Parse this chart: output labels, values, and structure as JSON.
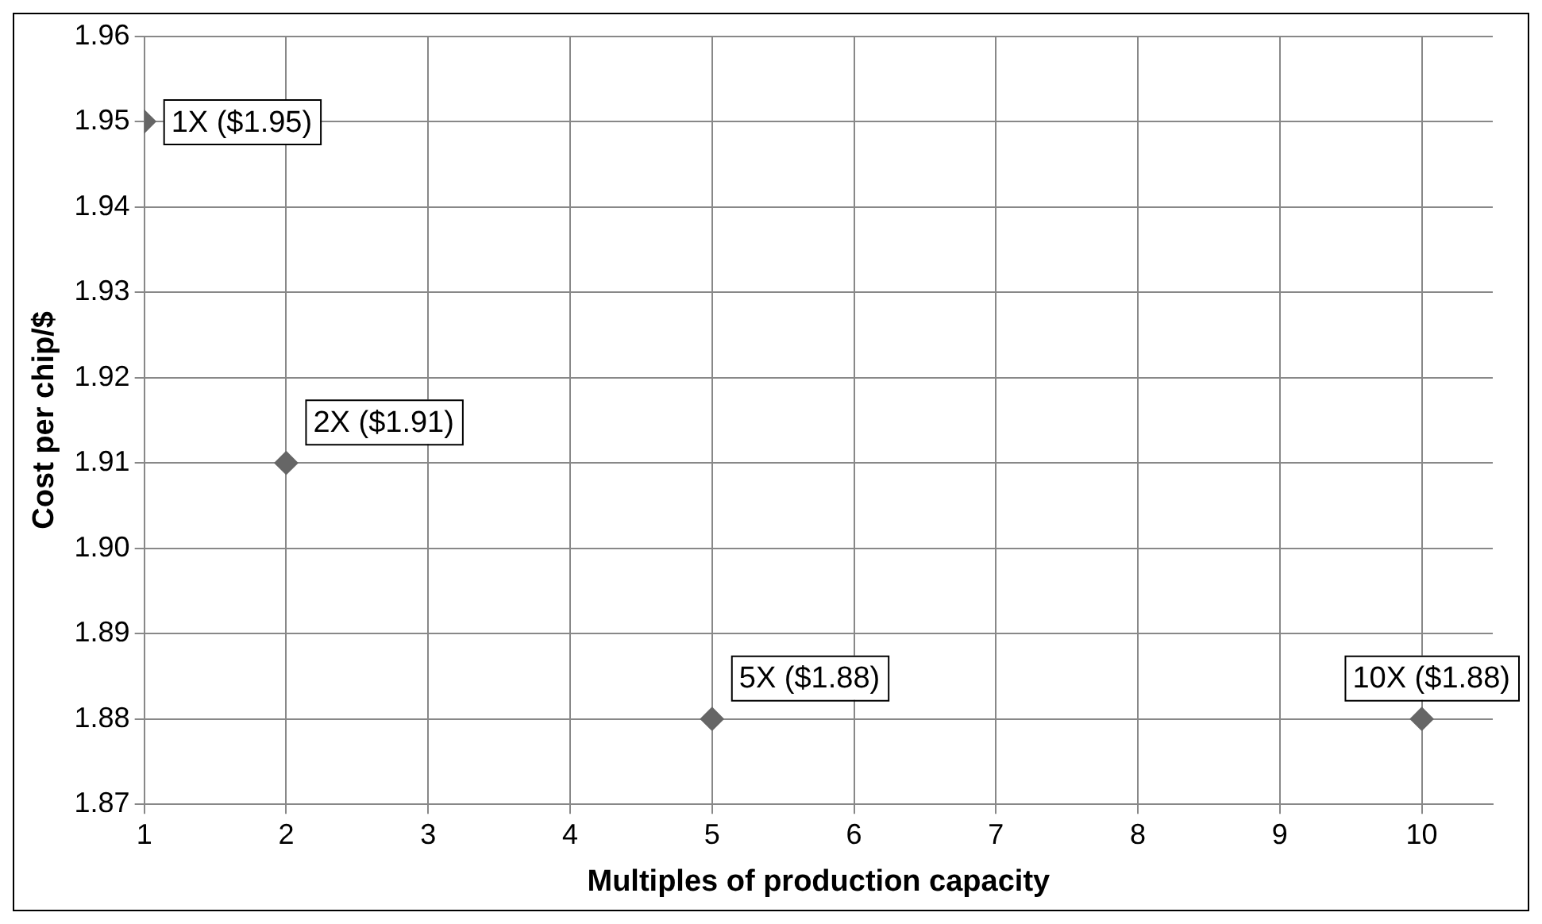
{
  "chart_data": {
    "type": "scatter",
    "xlabel": "Multiples of production capacity",
    "ylabel": "Cost per chip/$",
    "x": [
      1,
      2,
      5,
      10
    ],
    "series": [
      {
        "color": "#666666",
        "values": [
          1.95,
          1.91,
          1.88,
          1.88
        ],
        "value_labels": [
          "1X ($1.95)",
          "2X ($1.91)",
          "5X ($1.88)",
          "10X ($1.88)"
        ]
      }
    ],
    "xlim": [
      1,
      10.5
    ],
    "xticks": [
      1,
      2,
      3,
      4,
      5,
      6,
      7,
      8,
      9,
      10
    ],
    "ylim": [
      1.87,
      1.96
    ],
    "yticks": [
      {
        "value": 1.87,
        "label": "1.87"
      },
      {
        "value": 1.88,
        "label": "1.88"
      },
      {
        "value": 1.89,
        "label": "1.89"
      },
      {
        "value": 1.9,
        "label": "1.90"
      },
      {
        "value": 1.91,
        "label": "1.91"
      },
      {
        "value": 1.92,
        "label": "1.92"
      },
      {
        "value": 1.93,
        "label": "1.93"
      },
      {
        "value": 1.94,
        "label": "1.94"
      },
      {
        "value": 1.95,
        "label": "1.95"
      },
      {
        "value": 1.96,
        "label": "1.96"
      }
    ],
    "grid": true,
    "legend": false,
    "marker": "diamond"
  }
}
